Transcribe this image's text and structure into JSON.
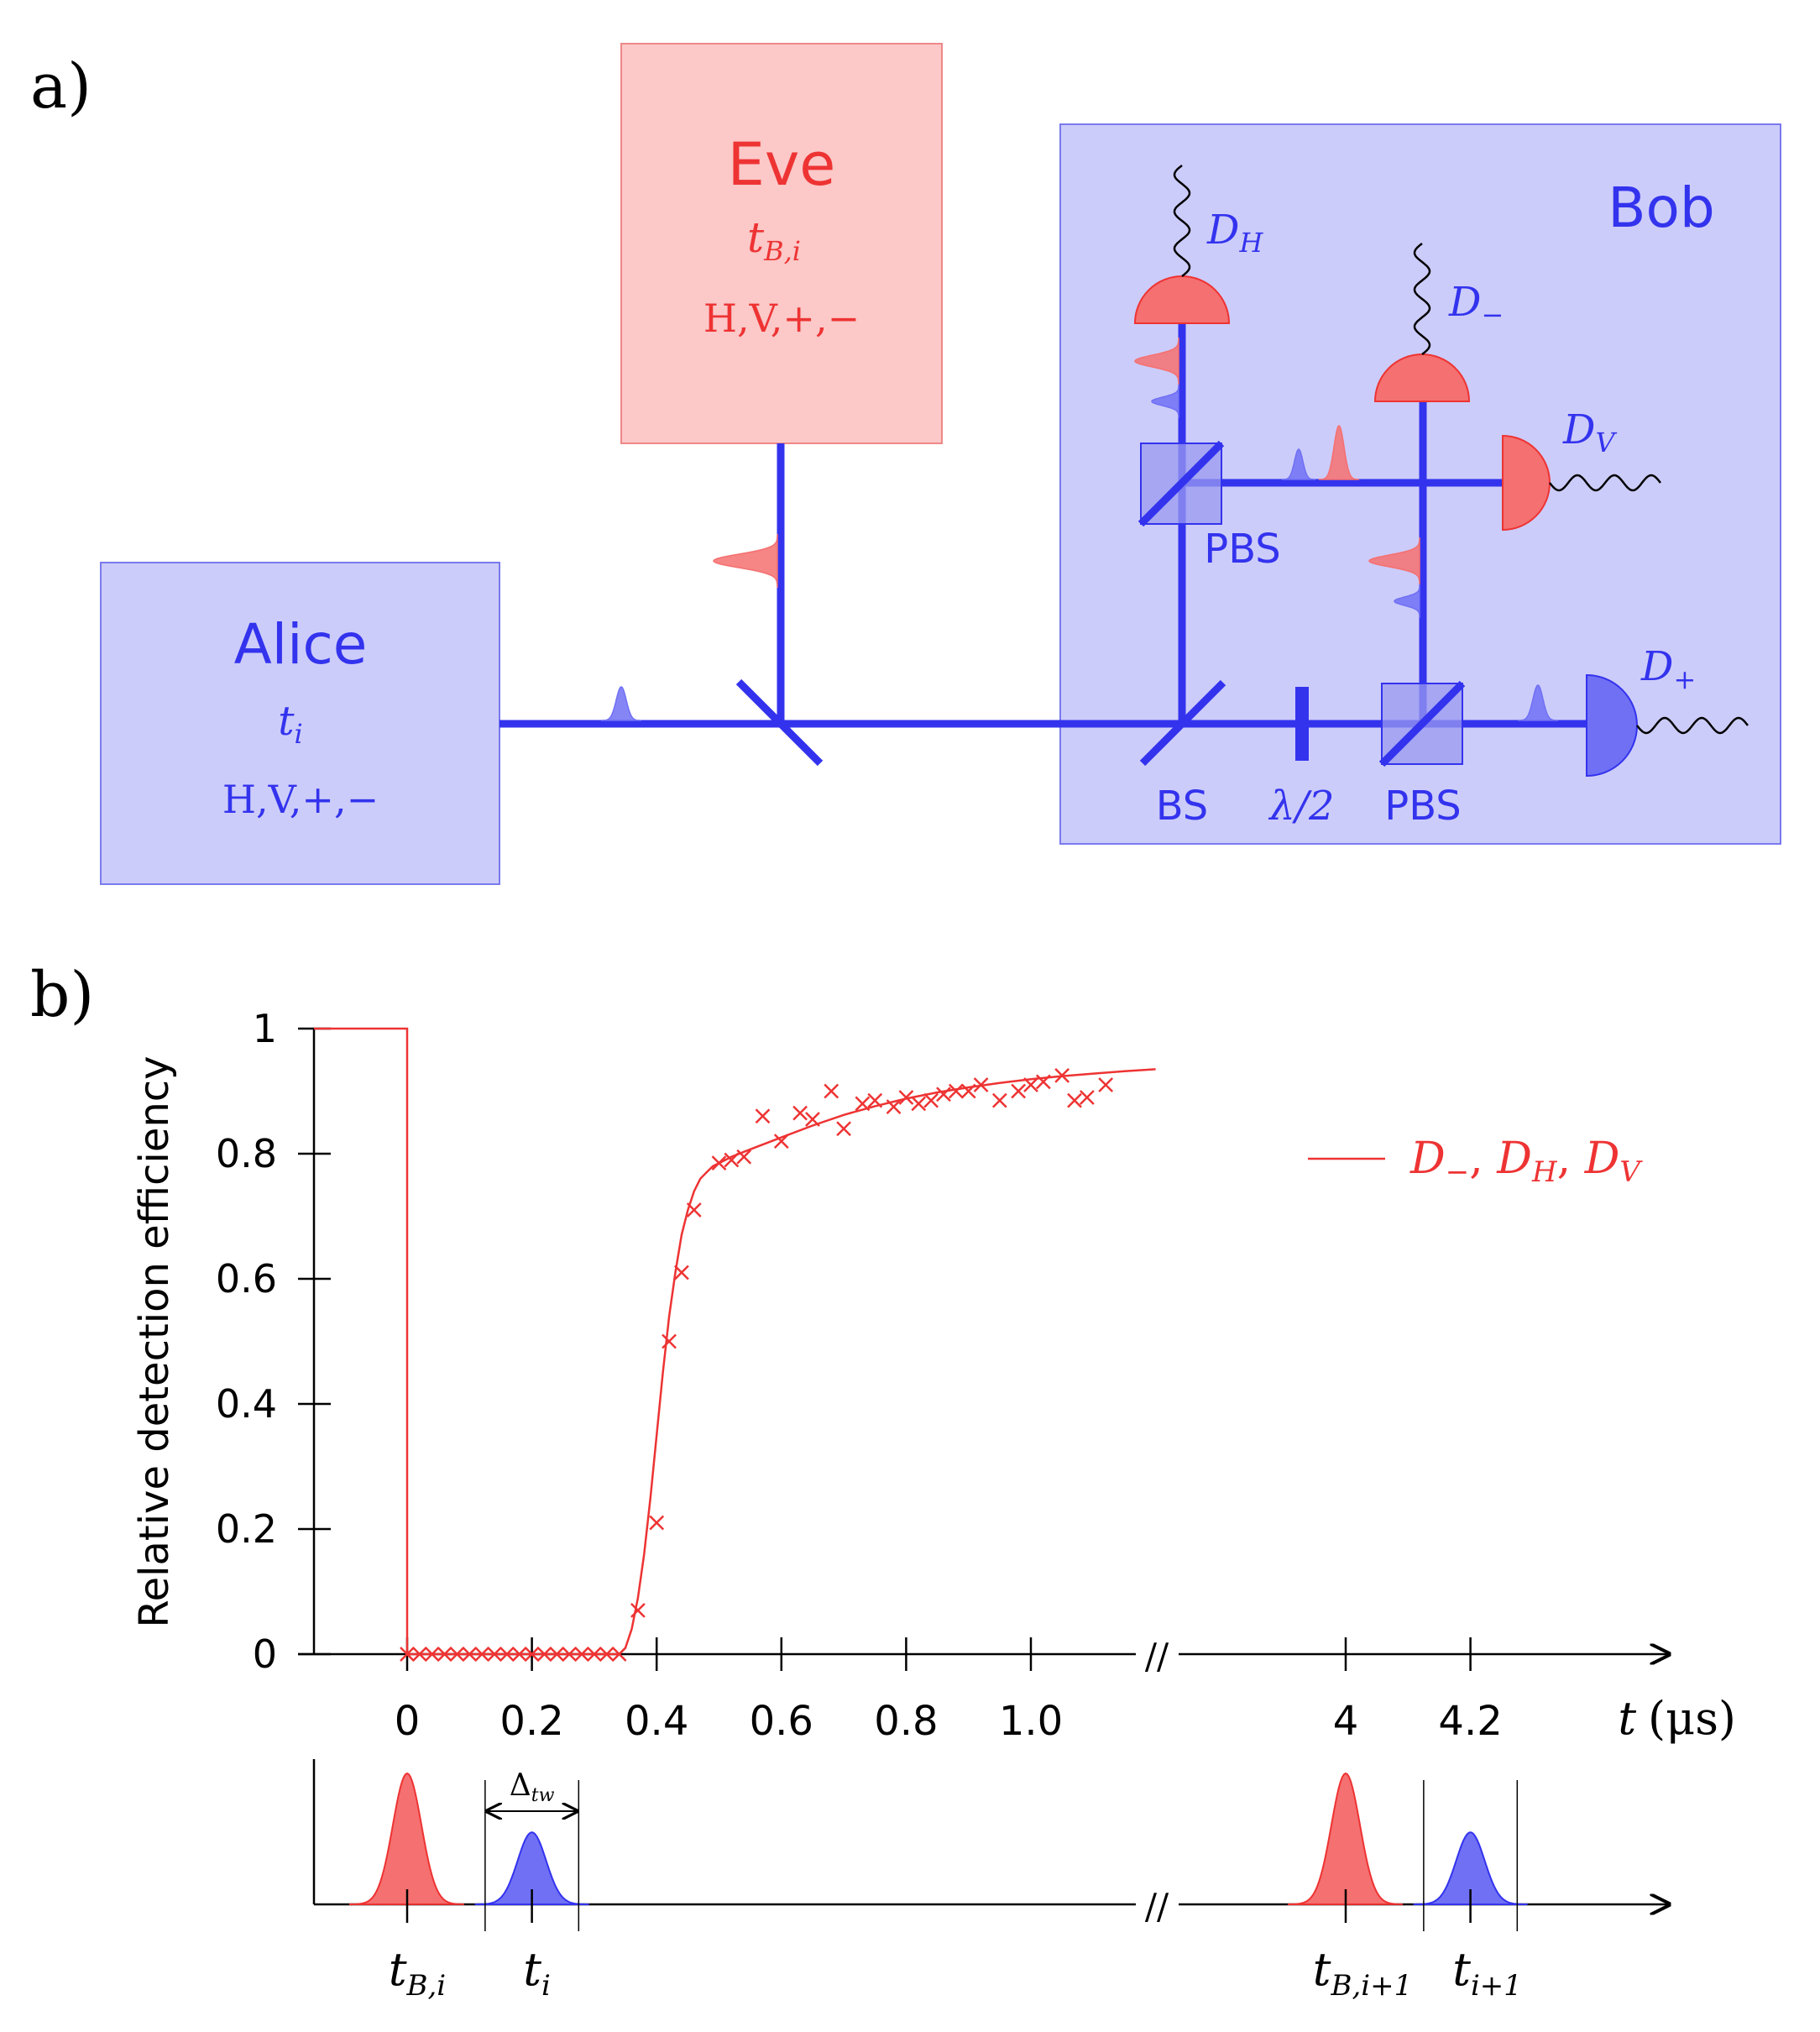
{
  "colors": {
    "blue": "#3333ee",
    "blue_fill": "#ccccfa",
    "blue_box_stroke": "#7a7aee",
    "red": "#ee3333",
    "red_fill": "#fcc8c8",
    "red_pulse": "#f57070",
    "blue_pulse": "#7070f5",
    "black": "#000000"
  },
  "panel_a": {
    "label": "a)",
    "alice": {
      "title": "Alice",
      "time": "t",
      "time_sub": "i",
      "basis": "H,V,+,−"
    },
    "eve": {
      "title": "Eve",
      "time": "t",
      "time_sub": "B,i",
      "basis": "H,V,+,−"
    },
    "bob": {
      "title": "Bob"
    },
    "components": {
      "bs": "BS",
      "waveplate": "λ/2",
      "pbs_top": "PBS",
      "pbs_bottom": "PBS"
    },
    "detectors": {
      "h": {
        "main": "D",
        "sub": "H"
      },
      "minus": {
        "main": "D",
        "sub": "−"
      },
      "v": {
        "main": "D",
        "sub": "V"
      },
      "plus": {
        "main": "D",
        "sub": "+"
      }
    }
  },
  "panel_b": {
    "label": "b)",
    "legend_text": "D−, DH, DV",
    "legend": {
      "d1": "D",
      "s1": "−",
      "d2": "D",
      "s2": "H",
      "d3": "D",
      "s3": "V",
      "sep": ", "
    },
    "x_axis_label": "t (μs)",
    "x_axis": {
      "var": "t",
      "unit": "(μs)"
    },
    "break_mark": "//",
    "delta_label": {
      "main": "Δ",
      "sub": "tw"
    },
    "timeline_labels": {
      "tb": {
        "main": "t",
        "sub": "B,i"
      },
      "ti": {
        "main": "t",
        "sub": "i"
      },
      "tb1": {
        "main": "t",
        "sub": "B,i+1"
      },
      "ti1": {
        "main": "t",
        "sub": "i+1"
      }
    }
  },
  "chart_data": {
    "type": "scatter",
    "title": "",
    "ylabel": "Relative detection efficiency",
    "xlabel": "t (μs)",
    "ylim": [
      0,
      1
    ],
    "x_ticks": [
      "0",
      "0.2",
      "0.4",
      "0.6",
      "0.8",
      "1.0",
      "4",
      "4.2"
    ],
    "x_tick_values": [
      0,
      0.2,
      0.4,
      0.6,
      0.8,
      1.0,
      4.0,
      4.2
    ],
    "y_ticks": [
      "0",
      "0.2",
      "0.4",
      "0.6",
      "0.8",
      "1"
    ],
    "y_tick_values": [
      0,
      0.2,
      0.4,
      0.6,
      0.8,
      1.0
    ],
    "axis_break": true,
    "legend_position": "upper-right",
    "series": [
      {
        "name": "D−, DH, DV fit",
        "kind": "line",
        "x": [
          -0.15,
          0,
          0,
          0.34,
          0.35,
          0.36,
          0.37,
          0.38,
          0.39,
          0.4,
          0.41,
          0.42,
          0.43,
          0.44,
          0.45,
          0.46,
          0.47,
          0.48,
          0.49,
          0.5,
          0.52,
          0.55,
          0.6,
          0.65,
          0.7,
          0.75,
          0.8,
          0.85,
          0.9,
          0.95,
          1.0,
          1.05,
          1.1,
          1.15,
          1.2
        ],
        "y": [
          1,
          1,
          0,
          0,
          0.01,
          0.04,
          0.09,
          0.16,
          0.25,
          0.35,
          0.45,
          0.54,
          0.61,
          0.67,
          0.71,
          0.74,
          0.76,
          0.77,
          0.78,
          0.785,
          0.795,
          0.807,
          0.826,
          0.845,
          0.862,
          0.876,
          0.888,
          0.898,
          0.906,
          0.913,
          0.919,
          0.924,
          0.928,
          0.932,
          0.935
        ]
      },
      {
        "name": "D−, DH, DV data",
        "kind": "markers",
        "x": [
          0,
          0.02,
          0.04,
          0.06,
          0.08,
          0.1,
          0.12,
          0.14,
          0.16,
          0.18,
          0.2,
          0.22,
          0.24,
          0.26,
          0.28,
          0.3,
          0.32,
          0.34,
          0.37,
          0.4,
          0.42,
          0.44,
          0.46,
          0.5,
          0.52,
          0.54,
          0.57,
          0.6,
          0.63,
          0.65,
          0.68,
          0.7,
          0.73,
          0.75,
          0.78,
          0.8,
          0.82,
          0.84,
          0.86,
          0.88,
          0.9,
          0.92,
          0.95,
          0.98,
          1.0,
          1.02,
          1.05,
          1.07,
          1.09,
          1.12
        ],
        "y": [
          0,
          0,
          0,
          0,
          0,
          0,
          0,
          0,
          0,
          0,
          0,
          0,
          0,
          0,
          0,
          0,
          0,
          0,
          0.07,
          0.21,
          0.5,
          0.61,
          0.71,
          0.785,
          0.79,
          0.795,
          0.86,
          0.82,
          0.865,
          0.855,
          0.9,
          0.84,
          0.88,
          0.885,
          0.875,
          0.89,
          0.88,
          0.885,
          0.895,
          0.9,
          0.9,
          0.91,
          0.885,
          0.9,
          0.91,
          0.915,
          0.925,
          0.885,
          0.89,
          0.91
        ]
      }
    ],
    "timeline_pulses": [
      {
        "name": "tB,i",
        "t": 0,
        "color": "red",
        "amplitude": 1.0
      },
      {
        "name": "ti",
        "t": 0.2,
        "color": "blue",
        "amplitude": 0.55
      },
      {
        "name": "tB,i+1",
        "t": 4.0,
        "color": "red",
        "amplitude": 1.0
      },
      {
        "name": "ti+1",
        "t": 4.2,
        "color": "blue",
        "amplitude": 0.55
      }
    ],
    "time_window_bounds": [
      0.125,
      0.275
    ]
  }
}
